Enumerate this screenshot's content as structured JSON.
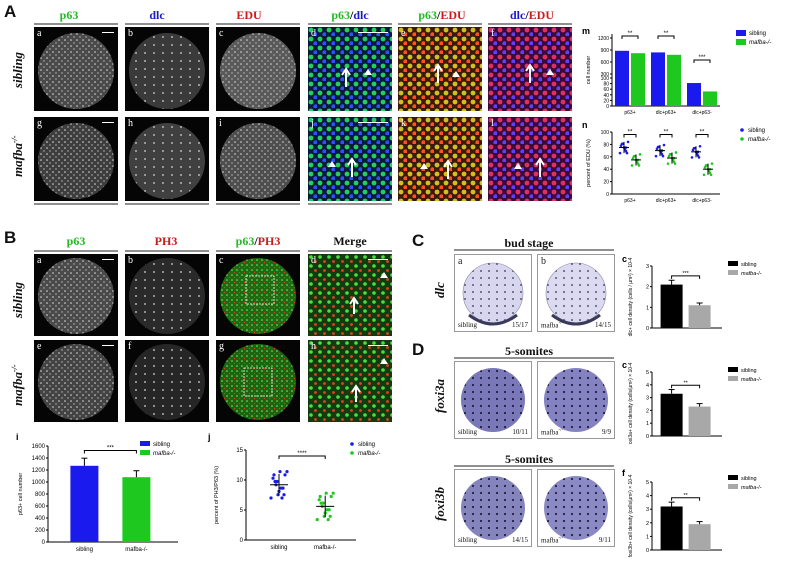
{
  "panel_letters": {
    "A": "A",
    "B": "B",
    "C": "C",
    "D": "D"
  },
  "panelA": {
    "col_heads": [
      {
        "text": "p63",
        "color": "#22bb22"
      },
      {
        "text": "dlc",
        "color": "#1a1acc"
      },
      {
        "text": "EDU",
        "color": "#cc1a1a"
      }
    ],
    "merge_heads": [
      {
        "a": "p63",
        "b": "dlc",
        "ca": "#22bb22",
        "cb": "#1a1acc"
      },
      {
        "a": "p63",
        "b": "EDU",
        "ca": "#22bb22",
        "cb": "#cc1a1a"
      },
      {
        "a": "dlc",
        "b": "EDU",
        "ca": "#1a1acc",
        "cb": "#cc1a1a"
      }
    ],
    "row_labels": [
      "sibling",
      "mafba-/-"
    ],
    "sub_labels": [
      "a",
      "b",
      "c",
      "d",
      "e",
      "f",
      "g",
      "h",
      "i",
      "j",
      "k",
      "l"
    ]
  },
  "panelB": {
    "col_heads": [
      {
        "text": "p63",
        "color": "#22bb22"
      },
      {
        "text": "PH3",
        "color": "#cc1a1a"
      },
      {
        "merge": true,
        "a": "p63",
        "b": "PH3"
      },
      {
        "text": "Merge",
        "color": "#111111"
      }
    ],
    "row_labels": [
      "sibling",
      "mafba-/-"
    ],
    "sub_labels": [
      "a",
      "b",
      "c",
      "d",
      "e",
      "f",
      "g",
      "h"
    ]
  },
  "panelC": {
    "stage": "bud stage",
    "gene": "dlc",
    "sub_labels": [
      "a",
      "b",
      "c"
    ],
    "counts": [
      "15/17",
      "14/15"
    ],
    "genotypes": [
      "sibling",
      "mafba-/-"
    ]
  },
  "panelD": {
    "stage_1": "5-somites",
    "stage_2": "5-somites",
    "genes": [
      "foxi3a",
      "foxi3b"
    ],
    "sub_labels": [
      "a",
      "b",
      "c",
      "d",
      "e",
      "f"
    ],
    "counts": [
      "10/11",
      "9/9",
      "14/15",
      "9/11"
    ],
    "genotypes": [
      "sibling",
      "mafba-/-"
    ]
  },
  "colors": {
    "sibling_blue": "#1a1aee",
    "mafba_green": "#1ec81e",
    "black": "#000000",
    "gray": "#a8a8a8"
  },
  "chart_data": [
    {
      "id": "m",
      "type": "bar",
      "categories": [
        "p63+",
        "dlc+p63+",
        "dlc+p63-"
      ],
      "series": [
        {
          "name": "sibling",
          "values": [
            880,
            840,
            82
          ]
        },
        {
          "name": "mafba-/-",
          "values": [
            820,
            780,
            52
          ]
        }
      ],
      "ylabel": "cell number",
      "yticks": [
        "0",
        "20",
        "40",
        "60",
        "80",
        "100",
        "300",
        "600",
        "900",
        "1200"
      ],
      "significance": [
        "**",
        "**",
        "***"
      ]
    },
    {
      "id": "n",
      "type": "scatter",
      "categories": [
        "p63+",
        "dlc+p63+",
        "dlc+p63-"
      ],
      "series": [
        {
          "name": "sibling",
          "values": [
            75,
            70,
            68
          ]
        },
        {
          "name": "mafba-/-",
          "values": [
            55,
            58,
            40
          ]
        }
      ],
      "ylabel": "percent of EDU (%)",
      "yticks": [
        "0",
        "20",
        "40",
        "60",
        "80",
        "100"
      ],
      "significance": [
        "**",
        "**",
        "**"
      ]
    },
    {
      "id": "i",
      "type": "bar",
      "categories": [
        "sibling",
        "mafba-/-"
      ],
      "values": [
        1270,
        1080
      ],
      "ylabel": "p63+ cell number",
      "yticks": [
        "0",
        "200",
        "400",
        "600",
        "800",
        "1000",
        "1200",
        "1400",
        "1600"
      ],
      "significance": "***",
      "legend": [
        "sibling",
        "mafba-/-"
      ]
    },
    {
      "id": "j",
      "type": "scatter",
      "categories": [
        "sibling",
        "mafba-/-"
      ],
      "values": [
        9.2,
        5.6
      ],
      "ylabel": "percent of PH3/P63 (%)",
      "yticks": [
        "0",
        "5",
        "10",
        "15"
      ],
      "significance": "****",
      "legend": [
        "sibling",
        "mafba-/-"
      ]
    },
    {
      "id": "Cc",
      "type": "bar",
      "categories": [
        "sibling",
        "mafba-/-"
      ],
      "values": [
        2.1,
        1.1
      ],
      "ylabel": "dlc+ cell density (cells / µm²) × 10-4",
      "yticks": [
        "0",
        "1",
        "2",
        "3"
      ],
      "significance": "***",
      "legend": [
        "sibling",
        "mafba-/-"
      ]
    },
    {
      "id": "Dc",
      "type": "bar",
      "categories": [
        "sibling",
        "mafba-/-"
      ],
      "values": [
        3.3,
        2.3
      ],
      "ylabel": "foxi3a+ cell density (cells/µm²) × 10-4",
      "yticks": [
        "0",
        "1",
        "2",
        "3",
        "4",
        "5"
      ],
      "significance": "**",
      "legend": [
        "sibling",
        "mafba-/-"
      ]
    },
    {
      "id": "Df",
      "type": "bar",
      "categories": [
        "sibling",
        "mafba-/-"
      ],
      "values": [
        3.2,
        1.9
      ],
      "ylabel": "foxi3b+ cell density (cells/µm²) × 10-4",
      "yticks": [
        "0",
        "1",
        "2",
        "3",
        "4",
        "5"
      ],
      "significance": "**",
      "legend": [
        "sibling",
        "mafba-/-"
      ]
    }
  ]
}
